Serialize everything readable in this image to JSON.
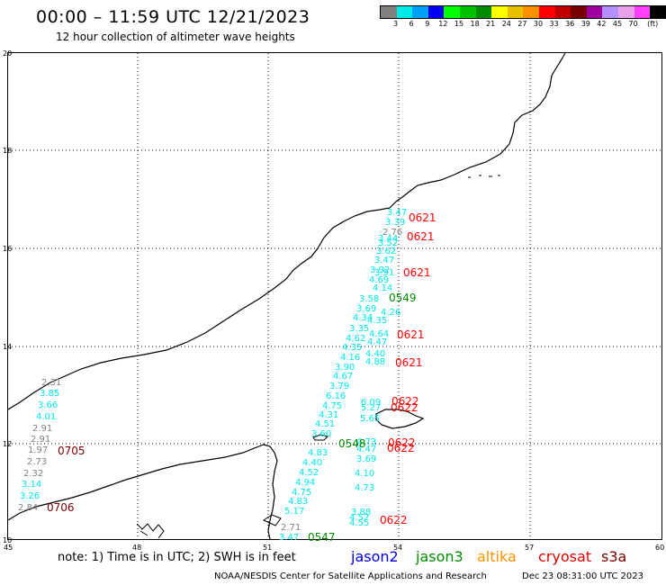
{
  "header": {
    "title": "00:00 – 11:59 UTC 12/21/2023",
    "subtitle": "12 hour collection of altimeter wave heights"
  },
  "legend": {
    "colors": [
      "#808080",
      "#00e8e8",
      "#00a0f8",
      "#0000f0",
      "#00ff00",
      "#00c000",
      "#008c00",
      "#ffff00",
      "#e8c000",
      "#ff9000",
      "#ff0000",
      "#c00000",
      "#780000",
      "#a000a0",
      "#b490ff",
      "#e8a0e8",
      "#ff40ff",
      "#000000"
    ],
    "labels": [
      "3",
      "6",
      "9",
      "12",
      "15",
      "18",
      "21",
      "24",
      "27",
      "30",
      "33",
      "36",
      "39",
      "42",
      "45",
      "70",
      "(ft)"
    ]
  },
  "axes": {
    "lon_labels": [
      "45",
      "48",
      "51",
      "54",
      "57",
      "60"
    ],
    "lat_labels": [
      "20",
      "18",
      "16",
      "14",
      "12",
      "10"
    ]
  },
  "wave_heights": [
    {
      "v": "2.31",
      "c": "#808080"
    },
    {
      "v": "3.85",
      "c": "#00e8e8"
    },
    {
      "v": "3.66",
      "c": "#00e8e8"
    },
    {
      "v": "4.01",
      "c": "#00e8e8"
    },
    {
      "v": "2.91",
      "c": "#808080"
    },
    {
      "v": "2.91",
      "c": "#808080"
    },
    {
      "v": "1.97",
      "c": "#808080"
    },
    {
      "v": "2.73",
      "c": "#808080"
    },
    {
      "v": "2.32",
      "c": "#808080"
    },
    {
      "v": "3.14",
      "c": "#00e8e8"
    },
    {
      "v": "3.26",
      "c": "#00e8e8"
    },
    {
      "v": "2.84",
      "c": "#808080"
    },
    {
      "v": "3.47",
      "c": "#00e8e8"
    },
    {
      "v": "3.39",
      "c": "#00e8e8"
    },
    {
      "v": "2.76",
      "c": "#808080"
    },
    {
      "v": "3.44",
      "c": "#00e8e8"
    },
    {
      "v": "3.52",
      "c": "#00e8e8"
    },
    {
      "v": "3.62",
      "c": "#00e8e8"
    },
    {
      "v": "3.47",
      "c": "#00e8e8"
    },
    {
      "v": "3.92",
      "c": "#00e8e8"
    },
    {
      "v": "3.91",
      "c": "#00e8e8"
    },
    {
      "v": "4.69",
      "c": "#00e8e8"
    },
    {
      "v": "4.14",
      "c": "#00e8e8"
    },
    {
      "v": "3.58",
      "c": "#00e8e8"
    },
    {
      "v": "3.69",
      "c": "#00e8e8"
    },
    {
      "v": "4.26",
      "c": "#00e8e8"
    },
    {
      "v": "4.34",
      "c": "#00e8e8"
    },
    {
      "v": "4.35",
      "c": "#00e8e8"
    },
    {
      "v": "3.35",
      "c": "#00e8e8"
    },
    {
      "v": "4.64",
      "c": "#00e8e8"
    },
    {
      "v": "4.62",
      "c": "#00e8e8"
    },
    {
      "v": "4.47",
      "c": "#00e8e8"
    },
    {
      "v": "4.35",
      "c": "#00e8e8"
    },
    {
      "v": "4.16",
      "c": "#00e8e8"
    },
    {
      "v": "4.40",
      "c": "#00e8e8"
    },
    {
      "v": "4.88",
      "c": "#00e8e8"
    },
    {
      "v": "3.90",
      "c": "#00e8e8"
    },
    {
      "v": "4.67",
      "c": "#00e8e8"
    },
    {
      "v": "3.79",
      "c": "#00e8e8"
    },
    {
      "v": "6.16",
      "c": "#00e8e8"
    },
    {
      "v": "6.09",
      "c": "#00e8e8"
    },
    {
      "v": "4.75",
      "c": "#00e8e8"
    },
    {
      "v": "5.27",
      "c": "#00e8e8"
    },
    {
      "v": "4.31",
      "c": "#00e8e8"
    },
    {
      "v": "5.65",
      "c": "#00e8e8"
    },
    {
      "v": "4.51",
      "c": "#00e8e8"
    },
    {
      "v": "3.60",
      "c": "#00e8e8"
    },
    {
      "v": "4.73",
      "c": "#00e8e8"
    },
    {
      "v": "4.83",
      "c": "#00e8e8"
    },
    {
      "v": "4.47",
      "c": "#00e8e8"
    },
    {
      "v": "4.40",
      "c": "#00e8e8"
    },
    {
      "v": "3.69",
      "c": "#00e8e8"
    },
    {
      "v": "4.52",
      "c": "#00e8e8"
    },
    {
      "v": "4.10",
      "c": "#00e8e8"
    },
    {
      "v": "4.94",
      "c": "#00e8e8"
    },
    {
      "v": "4.73",
      "c": "#00e8e8"
    },
    {
      "v": "4.75",
      "c": "#00e8e8"
    },
    {
      "v": "4.83",
      "c": "#00e8e8"
    },
    {
      "v": "5.17",
      "c": "#00e8e8"
    },
    {
      "v": "3.88",
      "c": "#00e8e8"
    },
    {
      "v": "4.52",
      "c": "#00e8e8"
    },
    {
      "v": "4.55",
      "c": "#00e8e8"
    },
    {
      "v": "2.71",
      "c": "#808080"
    },
    {
      "v": "3.47",
      "c": "#00e8e8"
    }
  ],
  "pass_times": [
    {
      "t": "0621",
      "c": "#ff0000"
    },
    {
      "t": "0621",
      "c": "#ff0000"
    },
    {
      "t": "0621",
      "c": "#ff0000"
    },
    {
      "t": "0549",
      "c": "#008c00"
    },
    {
      "t": "0621",
      "c": "#ff0000"
    },
    {
      "t": "0621",
      "c": "#ff0000"
    },
    {
      "t": "0622",
      "c": "#ff0000"
    },
    {
      "t": "0622",
      "c": "#ff0000"
    },
    {
      "t": "0622",
      "c": "#ff0000"
    },
    {
      "t": "0622",
      "c": "#ff0000"
    },
    {
      "t": "0548",
      "c": "#008c00"
    },
    {
      "t": "0622",
      "c": "#ff0000"
    },
    {
      "t": "0705",
      "c": "#780000"
    },
    {
      "t": "0706",
      "c": "#780000"
    },
    {
      "t": "0547",
      "c": "#008c00"
    }
  ],
  "footer": {
    "note": "note: 1) Time is in UTC; 2) SWH is in feet",
    "missions": [
      {
        "name": "jason2",
        "color": "#0000e0"
      },
      {
        "name": "jason3",
        "color": "#008c00"
      },
      {
        "name": "altika",
        "color": "#ff9000"
      },
      {
        "name": "cryosat",
        "color": "#e00000"
      },
      {
        "name": "s3a",
        "color": "#780000"
      }
    ],
    "credit": "NOAA/NESDIS Center for Satellite Applications and Research",
    "timestamp": "Dec 23 08:31:00 UTC 2023"
  }
}
